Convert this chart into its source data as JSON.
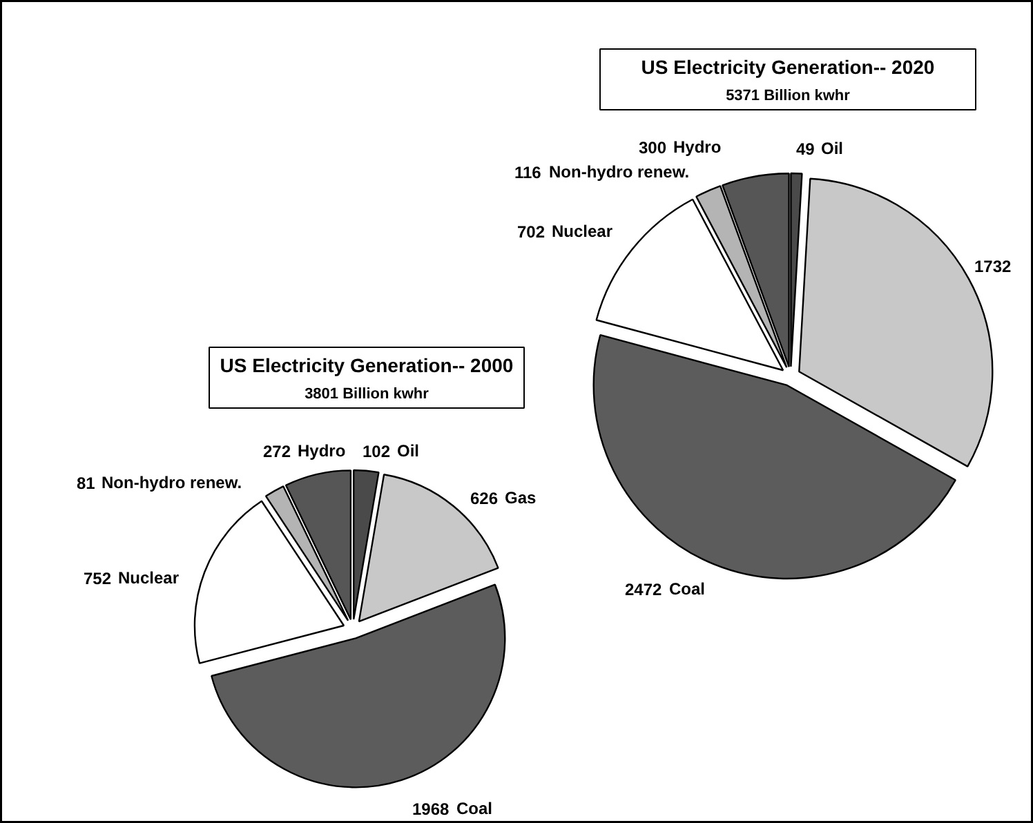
{
  "chart_data": [
    {
      "type": "pie",
      "title": "US Electricity Generation-- 2000",
      "subtitle": "3801 Billion kwhr",
      "categories": [
        "Oil",
        "Gas",
        "Coal",
        "Nuclear",
        "Non-hydro renew.",
        "Hydro"
      ],
      "values": [
        102,
        626,
        1968,
        752,
        81,
        272
      ],
      "colors": [
        "#4a4a4a",
        "#c8c8c8",
        "#5c5c5c",
        "#ffffff",
        "#b4b4b4",
        "#565656"
      ],
      "data_labels": true
    },
    {
      "type": "pie",
      "title": "US Electricity Generation-- 2020",
      "subtitle": "5371 Billion kwhr",
      "categories": [
        "Oil",
        null,
        "Coal",
        "Nuclear",
        "Non-hydro renew.",
        "Hydro"
      ],
      "values": [
        49,
        1732,
        2472,
        702,
        116,
        300
      ],
      "colors": [
        "#4a4a4a",
        "#c8c8c8",
        "#5c5c5c",
        "#ffffff",
        "#b4b4b4",
        "#565656"
      ],
      "data_labels": true
    }
  ]
}
